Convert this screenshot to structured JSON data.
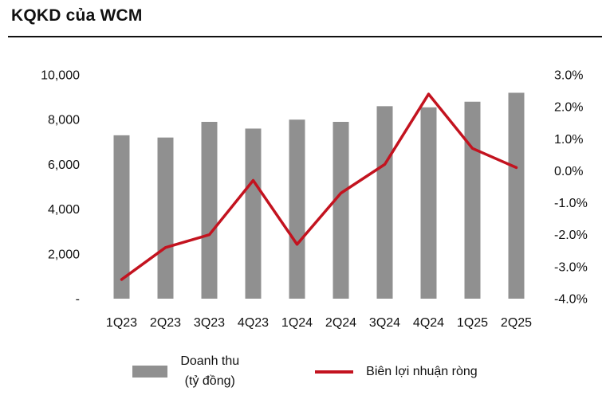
{
  "title": "KQKD của WCM",
  "chart_data": {
    "type": "bar+line",
    "title": "KQKD của WCM",
    "categories": [
      "1Q23",
      "2Q23",
      "3Q23",
      "4Q23",
      "1Q24",
      "2Q24",
      "3Q24",
      "4Q24",
      "1Q25",
      "2Q25"
    ],
    "series": [
      {
        "name": "Doanh thu (tỷ đồng)",
        "type": "bar",
        "axis": "left",
        "color": "#909090",
        "values": [
          7300,
          7200,
          7900,
          7600,
          8000,
          7900,
          8600,
          8550,
          8800,
          9200
        ]
      },
      {
        "name": "Biên lợi nhuận ròng",
        "type": "line",
        "axis": "right",
        "color": "#c3131f",
        "values": [
          -3.4,
          -2.4,
          -2.0,
          -0.3,
          -2.3,
          -0.7,
          0.2,
          2.4,
          0.7,
          0.1
        ]
      }
    ],
    "left_axis": {
      "min": 0,
      "max": 10000,
      "tick_step": 2000,
      "labels": [
        "10,000",
        "8,000",
        "6,000",
        "4,000",
        "2,000",
        "-"
      ]
    },
    "right_axis": {
      "min": -4,
      "max": 3,
      "tick_step": 1,
      "labels": [
        "3.0%",
        "2.0%",
        "1.0%",
        "0.0%",
        "-1.0%",
        "-2.0%",
        "-3.0%",
        "-4.0%"
      ]
    },
    "grid": false,
    "legend_position": "bottom"
  },
  "legend": {
    "bar_label_line1": "Doanh thu",
    "bar_label_line2": "(tỷ đồng)",
    "line_label": "Biên lợi nhuận ròng"
  }
}
